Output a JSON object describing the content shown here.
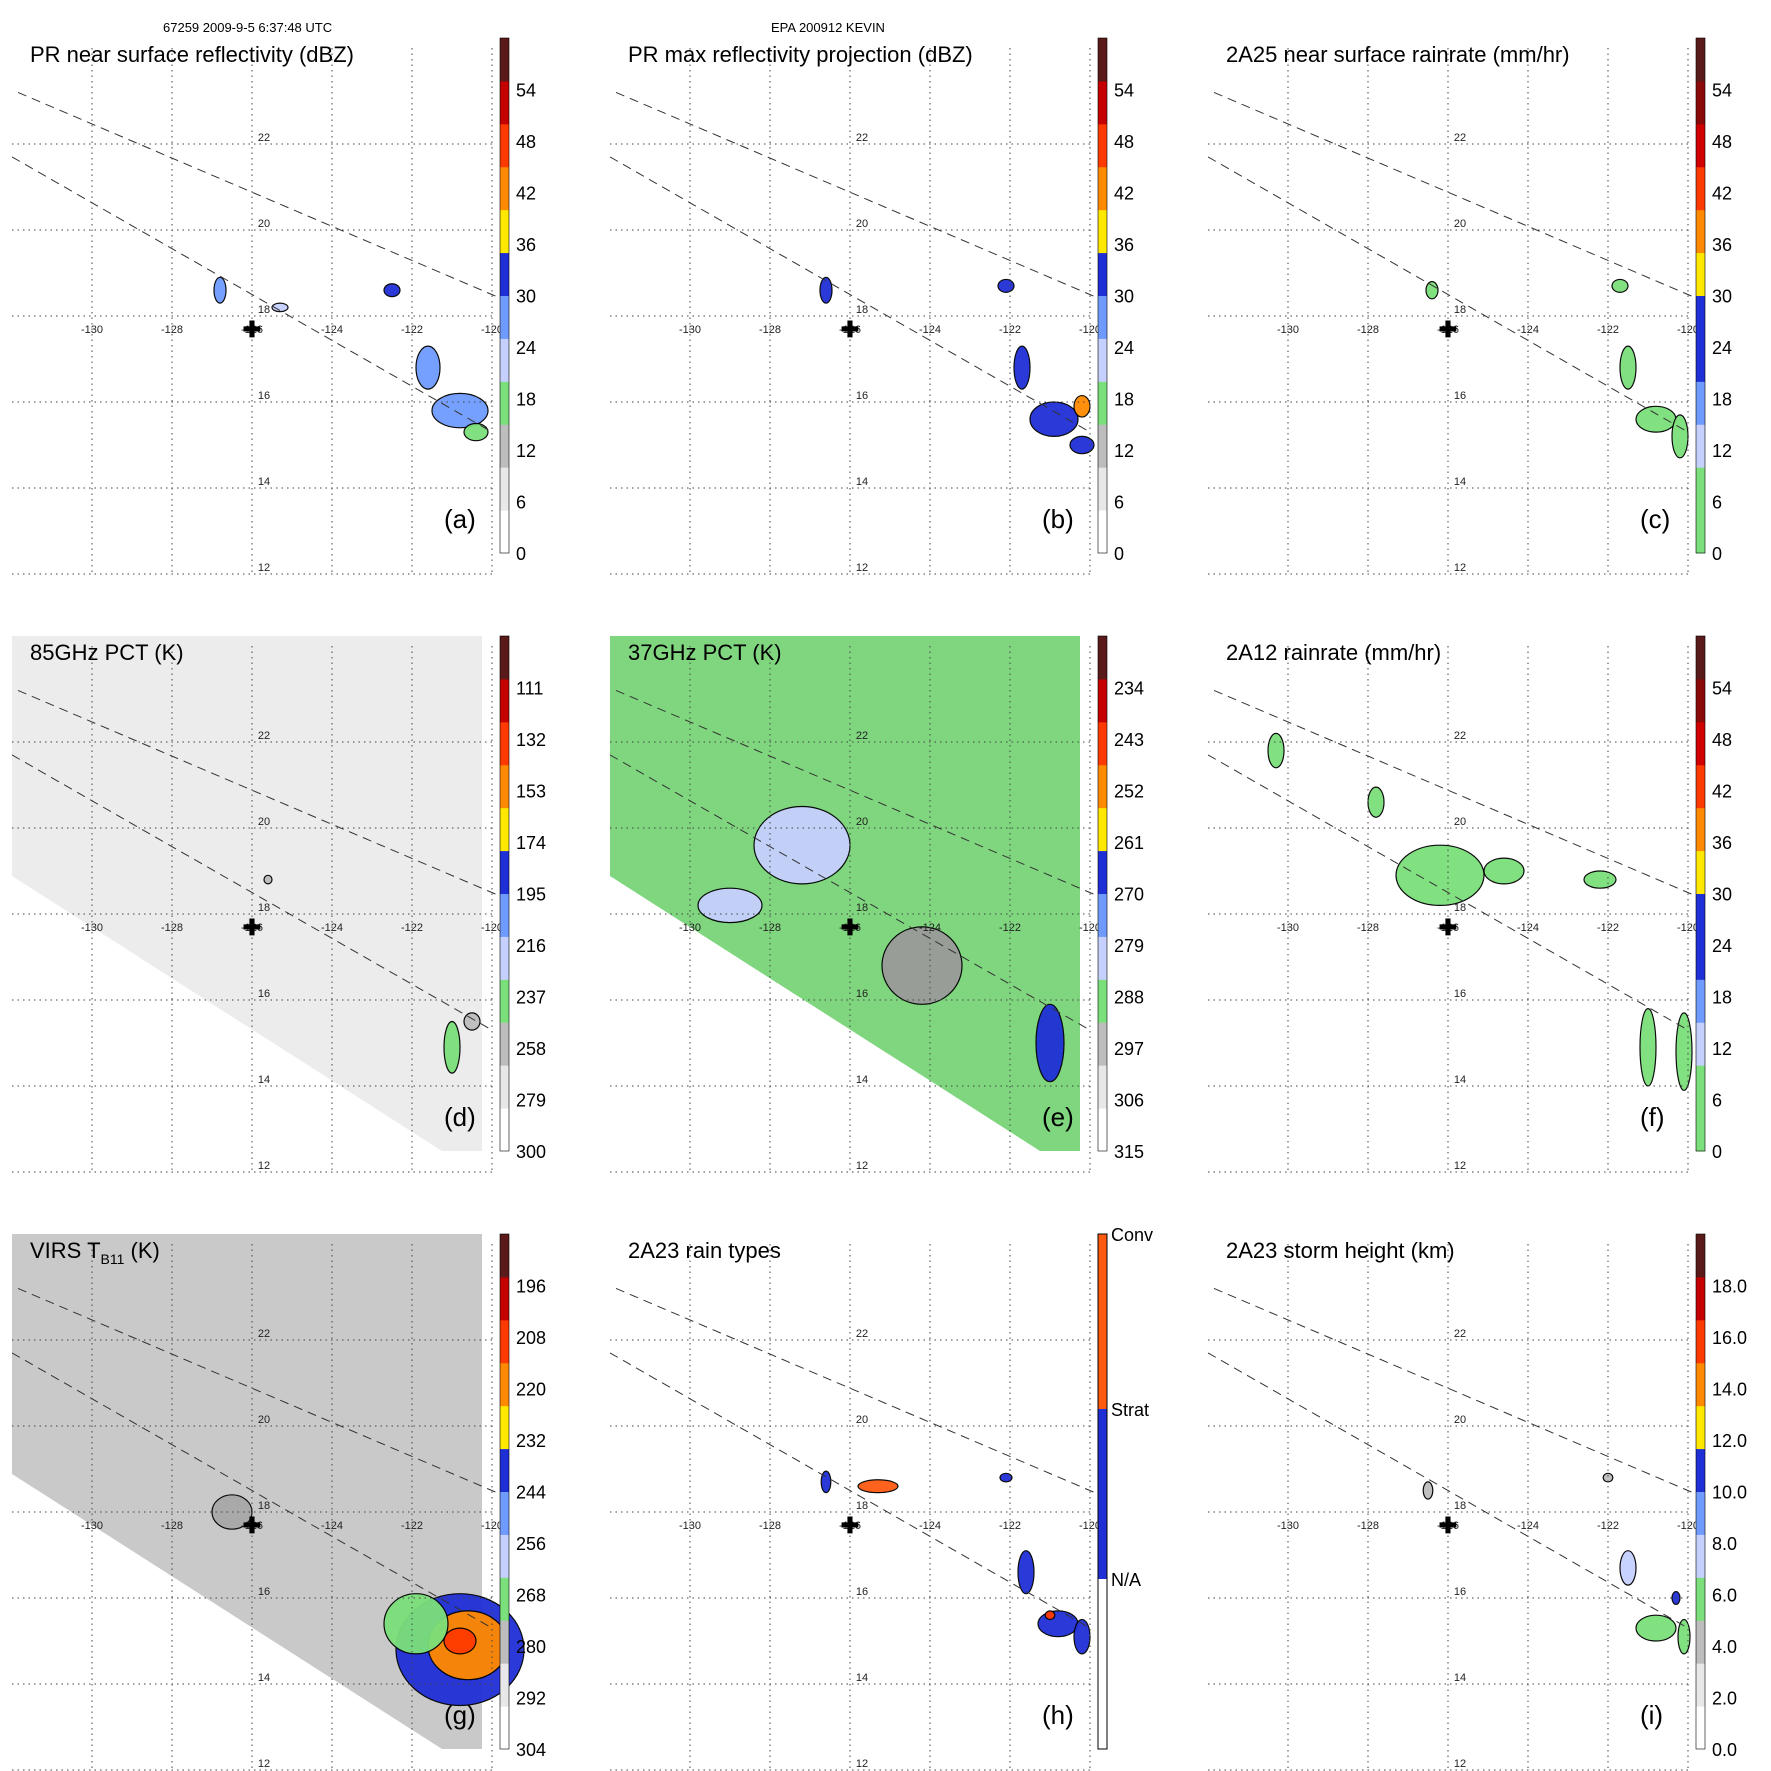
{
  "header": {
    "left": "67259 2009-9-5 6:37:48 UTC",
    "center": "EPA 200912 KEVIN"
  },
  "lon_labels": [
    "-130",
    "-128",
    "-126",
    "-124",
    "-122",
    "-120"
  ],
  "lat_labels": [
    "12",
    "14",
    "16",
    "18",
    "20",
    "22"
  ],
  "center_marker": {
    "lon": -126,
    "lat": 17.7,
    "symbol": "✚"
  },
  "panels": [
    {
      "id": "a",
      "title": "PR near surface reflectivity (dBZ)",
      "label": "(a)",
      "colorbar": [
        "0",
        "6",
        "12",
        "18",
        "24",
        "30",
        "36",
        "42",
        "48",
        "54"
      ],
      "palette": [
        "#ffffff",
        "#e8e8e8",
        "#bdbdbd",
        "#7be07b",
        "#c6d0ff",
        "#6f9bff",
        "#1f2fd6",
        "#ffe800",
        "#ff8a00",
        "#ff3a00",
        "#c40000",
        "#5a1a1a"
      ],
      "rain": [
        {
          "lon": -126.8,
          "lat": 18.6,
          "rx": 0.15,
          "ry": 0.3,
          "c": "#6f9bff"
        },
        {
          "lon": -122.5,
          "lat": 18.6,
          "rx": 0.2,
          "ry": 0.15,
          "c": "#1f2fd6"
        },
        {
          "lon": -121.6,
          "lat": 16.8,
          "rx": 0.3,
          "ry": 0.5,
          "c": "#6f9bff"
        },
        {
          "lon": -120.8,
          "lat": 15.8,
          "rx": 0.7,
          "ry": 0.4,
          "c": "#6f9bff"
        },
        {
          "lon": -120.4,
          "lat": 15.3,
          "rx": 0.3,
          "ry": 0.2,
          "c": "#7be07b"
        },
        {
          "lon": -125.3,
          "lat": 18.2,
          "rx": 0.2,
          "ry": 0.1,
          "c": "#c6d0ff"
        }
      ]
    },
    {
      "id": "b",
      "title": "PR max reflectivity projection (dBZ)",
      "label": "(b)",
      "colorbar": [
        "0",
        "6",
        "12",
        "18",
        "24",
        "30",
        "36",
        "42",
        "48",
        "54"
      ],
      "palette": [
        "#ffffff",
        "#e8e8e8",
        "#bdbdbd",
        "#7be07b",
        "#c6d0ff",
        "#6f9bff",
        "#1f2fd6",
        "#ffe800",
        "#ff8a00",
        "#ff3a00",
        "#c40000",
        "#5a1a1a"
      ],
      "rain": [
        {
          "lon": -126.6,
          "lat": 18.6,
          "rx": 0.15,
          "ry": 0.3,
          "c": "#1f2fd6"
        },
        {
          "lon": -122.1,
          "lat": 18.7,
          "rx": 0.2,
          "ry": 0.15,
          "c": "#1f2fd6"
        },
        {
          "lon": -121.7,
          "lat": 16.8,
          "rx": 0.2,
          "ry": 0.5,
          "c": "#1f2fd6"
        },
        {
          "lon": -120.9,
          "lat": 15.6,
          "rx": 0.6,
          "ry": 0.4,
          "c": "#1f2fd6"
        },
        {
          "lon": -120.2,
          "lat": 15.9,
          "rx": 0.2,
          "ry": 0.25,
          "c": "#ff8a00"
        },
        {
          "lon": -120.2,
          "lat": 15.0,
          "rx": 0.3,
          "ry": 0.2,
          "c": "#1f2fd6"
        }
      ]
    },
    {
      "id": "c",
      "title": "2A25 near surface rainrate (mm/hr)",
      "label": "(c)",
      "colorbar": [
        "0",
        "6",
        "12",
        "18",
        "24",
        "30",
        "36",
        "42",
        "48",
        "54"
      ],
      "palette": [
        "#7be07b",
        "#7be07b",
        "#c6d0ff",
        "#6f9bff",
        "#1f2fd6",
        "#1f2fd6",
        "#ffe800",
        "#ff8a00",
        "#ff3a00",
        "#d00000",
        "#8a0a0a",
        "#5a1a1a"
      ],
      "rain": [
        {
          "lon": -126.4,
          "lat": 18.6,
          "rx": 0.15,
          "ry": 0.2,
          "c": "#7be07b"
        },
        {
          "lon": -121.7,
          "lat": 18.7,
          "rx": 0.2,
          "ry": 0.15,
          "c": "#7be07b"
        },
        {
          "lon": -121.5,
          "lat": 16.8,
          "rx": 0.2,
          "ry": 0.5,
          "c": "#7be07b"
        },
        {
          "lon": -120.8,
          "lat": 15.6,
          "rx": 0.5,
          "ry": 0.3,
          "c": "#7be07b"
        },
        {
          "lon": -120.2,
          "lat": 15.2,
          "rx": 0.2,
          "ry": 0.5,
          "c": "#7be07b"
        }
      ]
    },
    {
      "id": "d",
      "title": "85GHz PCT (K)",
      "label": "(d)",
      "colorbar": [
        "300",
        "279",
        "258",
        "237",
        "216",
        "195",
        "174",
        "153",
        "132",
        "111"
      ],
      "palette": [
        "#ffffff",
        "#e8e8e8",
        "#bdbdbd",
        "#7be07b",
        "#c6d0ff",
        "#6f9bff",
        "#1f2fd6",
        "#ffe800",
        "#ff8a00",
        "#ff3a00",
        "#c40000",
        "#5a1a1a"
      ],
      "swath": "#ececec",
      "rain": [
        {
          "lon": -121.0,
          "lat": 14.9,
          "rx": 0.2,
          "ry": 0.6,
          "c": "#7be07b"
        },
        {
          "lon": -125.6,
          "lat": 18.8,
          "rx": 0.1,
          "ry": 0.1,
          "c": "#bdbdbd"
        },
        {
          "lon": -120.5,
          "lat": 15.5,
          "rx": 0.2,
          "ry": 0.2,
          "c": "#bdbdbd"
        }
      ]
    },
    {
      "id": "e",
      "title": "37GHz PCT (K)",
      "label": "(e)",
      "colorbar": [
        "315",
        "306",
        "297",
        "288",
        "279",
        "270",
        "261",
        "252",
        "243",
        "234"
      ],
      "palette": [
        "#ffffff",
        "#e8e8e8",
        "#bdbdbd",
        "#7be07b",
        "#c6d0ff",
        "#6f9bff",
        "#1f2fd6",
        "#ffe800",
        "#ff8a00",
        "#ff3a00",
        "#c40000",
        "#5a1a1a"
      ],
      "swath": "#7fd67f",
      "rain": [
        {
          "lon": -124.2,
          "lat": 16.8,
          "rx": 1.0,
          "ry": 0.9,
          "c": "#9a9a9a"
        },
        {
          "lon": -127.2,
          "lat": 19.6,
          "rx": 1.2,
          "ry": 0.9,
          "c": "#c6d0ff"
        },
        {
          "lon": -121.0,
          "lat": 15.0,
          "rx": 0.35,
          "ry": 0.9,
          "c": "#1f2fd6"
        },
        {
          "lon": -129.0,
          "lat": 18.2,
          "rx": 0.8,
          "ry": 0.4,
          "c": "#c6d0ff"
        }
      ]
    },
    {
      "id": "f",
      "title": "2A12 rainrate (mm/hr)",
      "label": "(f)",
      "colorbar": [
        "0",
        "6",
        "12",
        "18",
        "24",
        "30",
        "36",
        "42",
        "48",
        "54"
      ],
      "palette": [
        "#7be07b",
        "#7be07b",
        "#c6d0ff",
        "#6f9bff",
        "#1f2fd6",
        "#1f2fd6",
        "#ffe800",
        "#ff8a00",
        "#ff3a00",
        "#d00000",
        "#8a0a0a",
        "#5a1a1a"
      ],
      "rain": [
        {
          "lon": -126.2,
          "lat": 18.9,
          "rx": 1.1,
          "ry": 0.7,
          "c": "#7be07b"
        },
        {
          "lon": -124.6,
          "lat": 19.0,
          "rx": 0.5,
          "ry": 0.3,
          "c": "#7be07b"
        },
        {
          "lon": -127.8,
          "lat": 20.6,
          "rx": 0.2,
          "ry": 0.35,
          "c": "#7be07b"
        },
        {
          "lon": -122.2,
          "lat": 18.8,
          "rx": 0.4,
          "ry": 0.2,
          "c": "#7be07b"
        },
        {
          "lon": -121.0,
          "lat": 14.9,
          "rx": 0.2,
          "ry": 0.9,
          "c": "#7be07b"
        },
        {
          "lon": -120.1,
          "lat": 14.8,
          "rx": 0.2,
          "ry": 0.9,
          "c": "#7be07b"
        },
        {
          "lon": -130.3,
          "lat": 21.8,
          "rx": 0.2,
          "ry": 0.4,
          "c": "#7be07b"
        }
      ]
    },
    {
      "id": "g",
      "title": "VIRS T",
      "title_sub": "B11",
      "title_tail": " (K)",
      "label": "(g)",
      "colorbar": [
        "304",
        "292",
        "280",
        "268",
        "256",
        "244",
        "232",
        "220",
        "208",
        "196"
      ],
      "palette": [
        "#ffffff",
        "#e8e8e8",
        "#bdbdbd",
        "#7be07b",
        "#c6d0ff",
        "#6f9bff",
        "#1f2fd6",
        "#ffe800",
        "#ff8a00",
        "#ff3a00",
        "#c40000",
        "#5a1a1a"
      ],
      "swath": "#c9c9c9",
      "rain": [
        {
          "lon": -120.8,
          "lat": 14.8,
          "rx": 1.6,
          "ry": 1.3,
          "c": "#1f2fd6"
        },
        {
          "lon": -120.6,
          "lat": 14.9,
          "rx": 1.0,
          "ry": 0.8,
          "c": "#ff8a00"
        },
        {
          "lon": -120.8,
          "lat": 15.0,
          "rx": 0.4,
          "ry": 0.3,
          "c": "#ff3a00"
        },
        {
          "lon": -121.9,
          "lat": 15.4,
          "rx": 0.8,
          "ry": 0.7,
          "c": "#7be07b"
        },
        {
          "lon": -126.5,
          "lat": 18.0,
          "rx": 0.5,
          "ry": 0.4,
          "c": "#a8a8a8"
        }
      ]
    },
    {
      "id": "h",
      "title": "2A23 rain types",
      "label": "(h)",
      "categorical": true,
      "colorbar": [
        "N/A",
        "Strat",
        "Conv"
      ],
      "palette": [
        "#ffffff",
        "#1f2fd6",
        "#ff5a10"
      ],
      "rain": [
        {
          "lon": -126.6,
          "lat": 18.7,
          "rx": 0.12,
          "ry": 0.25,
          "c": "#1f2fd6"
        },
        {
          "lon": -125.3,
          "lat": 18.6,
          "rx": 0.5,
          "ry": 0.15,
          "c": "#ff5a10"
        },
        {
          "lon": -122.1,
          "lat": 18.8,
          "rx": 0.15,
          "ry": 0.1,
          "c": "#1f2fd6"
        },
        {
          "lon": -121.6,
          "lat": 16.6,
          "rx": 0.2,
          "ry": 0.5,
          "c": "#1f2fd6"
        },
        {
          "lon": -120.8,
          "lat": 15.4,
          "rx": 0.5,
          "ry": 0.3,
          "c": "#1f2fd6"
        },
        {
          "lon": -120.2,
          "lat": 15.1,
          "rx": 0.2,
          "ry": 0.4,
          "c": "#1f2fd6"
        },
        {
          "lon": -121.0,
          "lat": 15.6,
          "rx": 0.12,
          "ry": 0.1,
          "c": "#ff3a00"
        }
      ]
    },
    {
      "id": "i",
      "title": "2A23 storm height (km)",
      "label": "(i)",
      "colorbar": [
        "0.0",
        "2.0",
        "4.0",
        "6.0",
        "8.0",
        "10.0",
        "12.0",
        "14.0",
        "16.0",
        "18.0"
      ],
      "palette": [
        "#ffffff",
        "#e8e8e8",
        "#bdbdbd",
        "#7be07b",
        "#c6d0ff",
        "#6f9bff",
        "#1f2fd6",
        "#ffe800",
        "#ff8a00",
        "#ff3a00",
        "#c40000",
        "#5a1a1a"
      ],
      "rain": [
        {
          "lon": -126.5,
          "lat": 18.5,
          "rx": 0.12,
          "ry": 0.2,
          "c": "#bdbdbd"
        },
        {
          "lon": -122.0,
          "lat": 18.8,
          "rx": 0.12,
          "ry": 0.1,
          "c": "#bdbdbd"
        },
        {
          "lon": -121.5,
          "lat": 16.7,
          "rx": 0.2,
          "ry": 0.4,
          "c": "#c6d0ff"
        },
        {
          "lon": -120.8,
          "lat": 15.3,
          "rx": 0.5,
          "ry": 0.3,
          "c": "#7be07b"
        },
        {
          "lon": -120.1,
          "lat": 15.1,
          "rx": 0.15,
          "ry": 0.4,
          "c": "#7be07b"
        },
        {
          "lon": -120.3,
          "lat": 16.0,
          "rx": 0.1,
          "ry": 0.15,
          "c": "#1f2fd6"
        }
      ]
    }
  ]
}
